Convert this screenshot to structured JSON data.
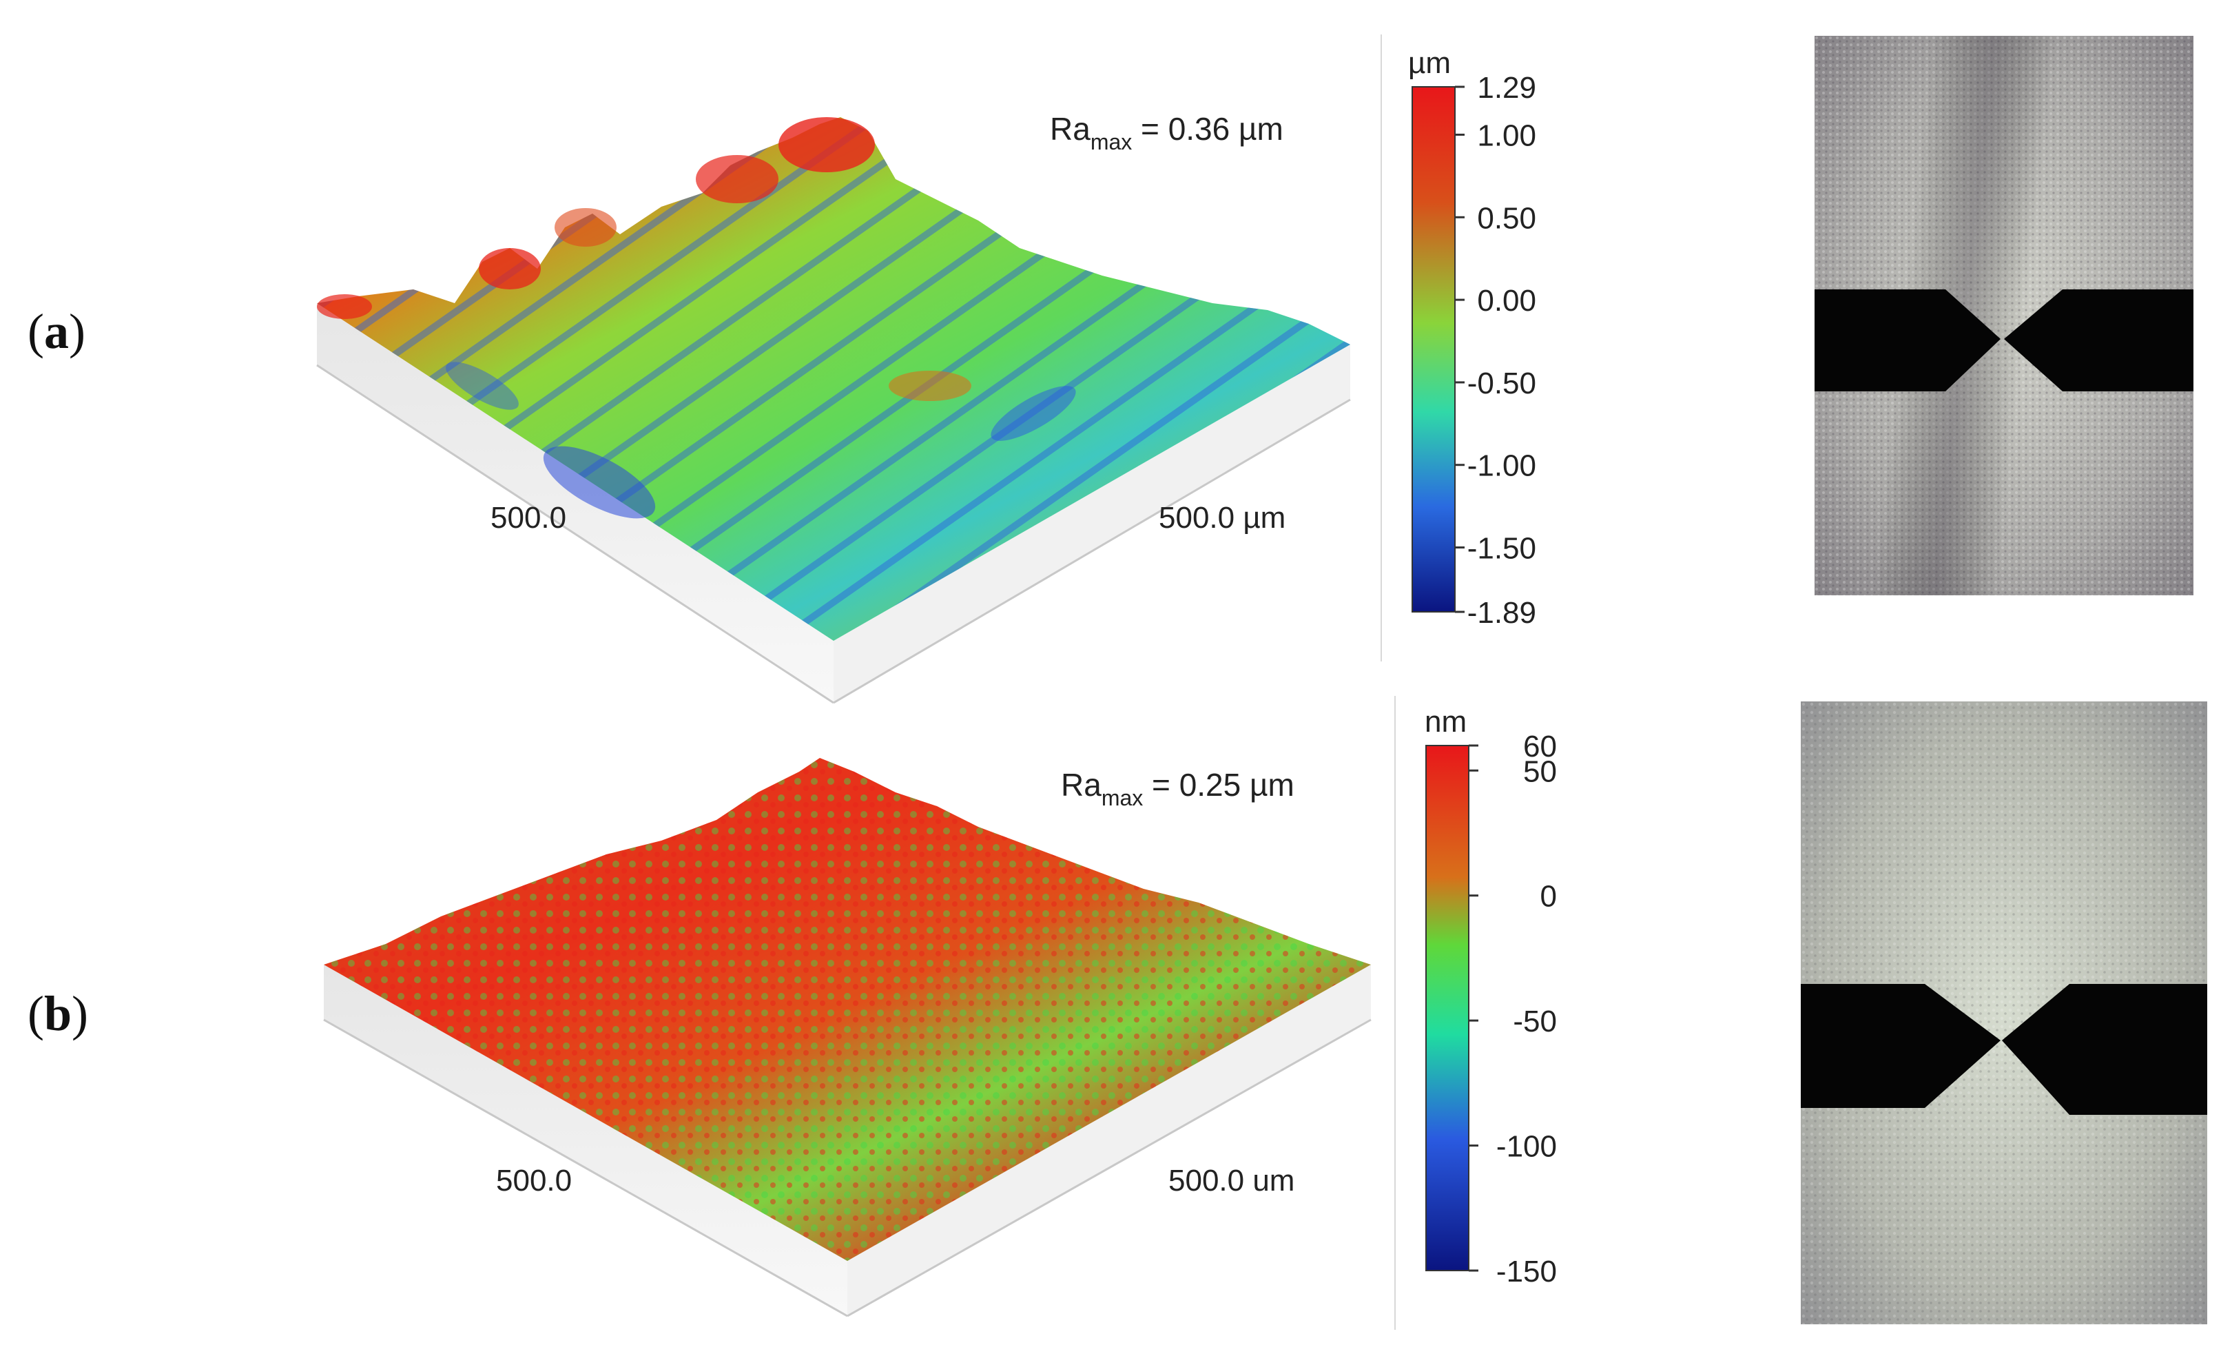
{
  "panels": [
    {
      "label": "a",
      "ra_prefix": "Ra",
      "ra_sub": "max",
      "ra_value": " = 0.36 µm",
      "axis_left": "500.0",
      "axis_right": "500.0 µm",
      "colorbar": {
        "unit": "µm",
        "min": -1.89,
        "max": 1.29,
        "ticks": [
          "1.29",
          "1.00",
          "0.50",
          "0.00",
          "-0.50",
          "-1.00",
          "-1.50",
          "-1.89"
        ],
        "tick_values": [
          1.29,
          1.0,
          0.5,
          0.0,
          -0.5,
          -1.0,
          -1.5,
          -1.89
        ]
      }
    },
    {
      "label": "b",
      "ra_prefix": "Ra",
      "ra_sub": "max",
      "ra_value": " = 0.25 µm",
      "axis_left": "500.0",
      "axis_right": "500.0 um",
      "colorbar": {
        "unit": "nm",
        "min": -150,
        "max": 60,
        "ticks": [
          "60",
          "50",
          "0",
          "-50",
          "-100",
          "-150"
        ],
        "tick_values": [
          60,
          50,
          0,
          -50,
          -100,
          -150
        ]
      }
    }
  ],
  "colors": {
    "red": "#e8231a",
    "orange": "#e06b14",
    "green": "#5fd83a",
    "cyan": "#2fd6a0",
    "blue": "#2f5fe0",
    "navy": "#0a1a8c"
  }
}
